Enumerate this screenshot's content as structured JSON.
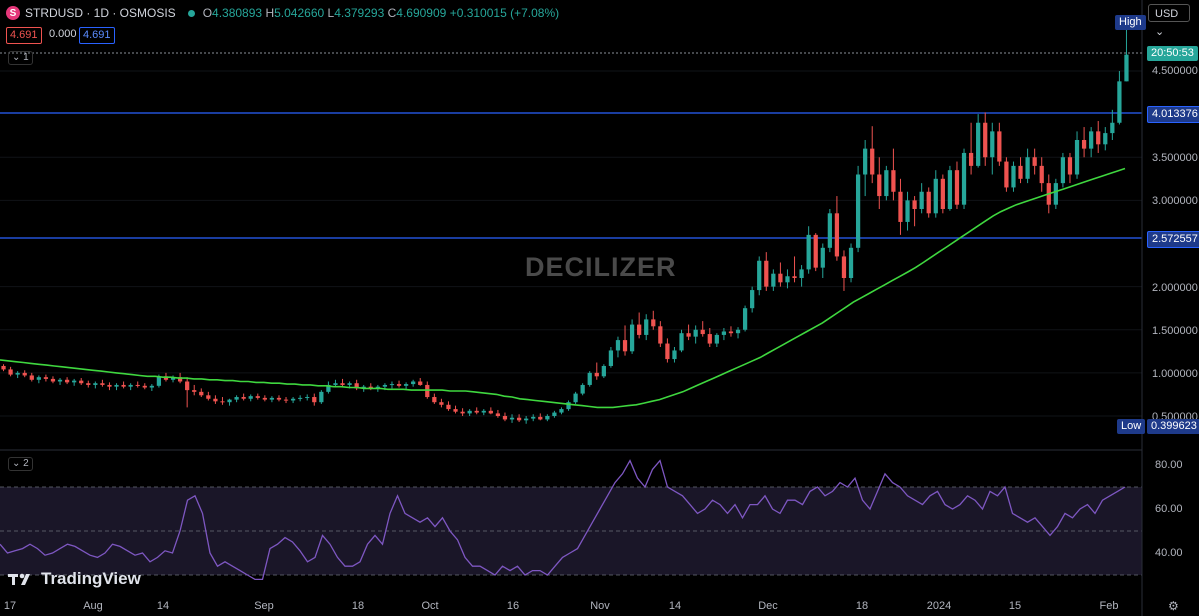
{
  "header": {
    "symbol_icon": "S",
    "title": "STRDUSD · 1D · OSMOSIS",
    "o_label": "O",
    "o": "4.380893",
    "h_label": "H",
    "h": "5.042660",
    "l_label": "L",
    "l": "4.379293",
    "c_label": "C",
    "c": "4.690909",
    "change": "+0.310015 (+7.08%)",
    "bid": "4.691",
    "spread": "0.000",
    "ask": "4.691",
    "pane1_label": "1",
    "pane2_label": "2",
    "currency": "USD"
  },
  "watermark": "DECILIZER",
  "branding": "TradingView",
  "price_axis": {
    "ticks": [
      "4.500000",
      "3.500000",
      "3.000000",
      "2.000000",
      "1.500000",
      "1.000000",
      "0.500000"
    ],
    "line_upper": "4.013376",
    "line_lower": "2.572557",
    "countdown": "20:50:53",
    "high_label": "High",
    "low_label": "Low",
    "low_value": "0.399623"
  },
  "rsi_axis": {
    "ticks": [
      "80.00",
      "60.00",
      "40.00"
    ]
  },
  "time_axis": [
    {
      "label": "17",
      "x": 10
    },
    {
      "label": "Aug",
      "x": 93
    },
    {
      "label": "14",
      "x": 163
    },
    {
      "label": "Sep",
      "x": 264
    },
    {
      "label": "18",
      "x": 358
    },
    {
      "label": "Oct",
      "x": 430
    },
    {
      "label": "16",
      "x": 513
    },
    {
      "label": "Nov",
      "x": 600
    },
    {
      "label": "14",
      "x": 675
    },
    {
      "label": "Dec",
      "x": 768
    },
    {
      "label": "18",
      "x": 862
    },
    {
      "label": "2024",
      "x": 939
    },
    {
      "label": "15",
      "x": 1015
    },
    {
      "label": "Feb",
      "x": 1109
    }
  ],
  "colors": {
    "up": "#26a69a",
    "down": "#ef5350",
    "ma": "#3fd73f",
    "rsi": "#7e57c2",
    "hline": "#2962ff",
    "band": "#1a1628"
  },
  "chart_data": [
    {
      "type": "candlestick",
      "title": "STRDUSD · 1D · OSMOSIS",
      "ylim": [
        0.35,
        5.1
      ],
      "candles": [
        [
          1.08,
          1.1,
          1.02,
          1.04
        ],
        [
          1.04,
          1.07,
          0.96,
          0.98
        ],
        [
          0.98,
          1.02,
          0.94,
          1.0
        ],
        [
          1.0,
          1.03,
          0.95,
          0.97
        ],
        [
          0.97,
          1.0,
          0.9,
          0.92
        ],
        [
          0.92,
          0.97,
          0.88,
          0.95
        ],
        [
          0.95,
          0.98,
          0.9,
          0.93
        ],
        [
          0.93,
          0.96,
          0.88,
          0.9
        ],
        [
          0.9,
          0.94,
          0.86,
          0.92
        ],
        [
          0.92,
          0.95,
          0.87,
          0.89
        ],
        [
          0.89,
          0.93,
          0.85,
          0.91
        ],
        [
          0.91,
          0.94,
          0.86,
          0.88
        ],
        [
          0.88,
          0.91,
          0.83,
          0.86
        ],
        [
          0.86,
          0.9,
          0.82,
          0.88
        ],
        [
          0.88,
          0.92,
          0.84,
          0.86
        ],
        [
          0.86,
          0.89,
          0.8,
          0.84
        ],
        [
          0.84,
          0.88,
          0.8,
          0.86
        ],
        [
          0.86,
          0.9,
          0.82,
          0.84
        ],
        [
          0.84,
          0.88,
          0.8,
          0.86
        ],
        [
          0.86,
          0.9,
          0.83,
          0.85
        ],
        [
          0.85,
          0.88,
          0.81,
          0.83
        ],
        [
          0.83,
          0.87,
          0.79,
          0.85
        ],
        [
          0.85,
          0.98,
          0.83,
          0.96
        ],
        [
          0.96,
          1.0,
          0.9,
          0.92
        ],
        [
          0.92,
          0.97,
          0.89,
          0.95
        ],
        [
          0.95,
          1.0,
          0.88,
          0.9
        ],
        [
          0.9,
          0.95,
          0.6,
          0.8
        ],
        [
          0.8,
          0.86,
          0.74,
          0.78
        ],
        [
          0.78,
          0.82,
          0.72,
          0.74
        ],
        [
          0.74,
          0.78,
          0.68,
          0.7
        ],
        [
          0.7,
          0.74,
          0.64,
          0.67
        ],
        [
          0.67,
          0.72,
          0.63,
          0.66
        ],
        [
          0.66,
          0.7,
          0.62,
          0.69
        ],
        [
          0.69,
          0.74,
          0.66,
          0.72
        ],
        [
          0.72,
          0.76,
          0.68,
          0.7
        ],
        [
          0.7,
          0.75,
          0.67,
          0.73
        ],
        [
          0.73,
          0.76,
          0.69,
          0.71
        ],
        [
          0.71,
          0.74,
          0.67,
          0.69
        ],
        [
          0.69,
          0.73,
          0.66,
          0.71
        ],
        [
          0.71,
          0.74,
          0.67,
          0.69
        ],
        [
          0.69,
          0.72,
          0.65,
          0.68
        ],
        [
          0.68,
          0.72,
          0.65,
          0.7
        ],
        [
          0.7,
          0.74,
          0.67,
          0.71
        ],
        [
          0.71,
          0.75,
          0.68,
          0.72
        ],
        [
          0.72,
          0.76,
          0.62,
          0.66
        ],
        [
          0.66,
          0.8,
          0.64,
          0.78
        ],
        [
          0.78,
          0.9,
          0.76,
          0.86
        ],
        [
          0.86,
          0.92,
          0.83,
          0.88
        ],
        [
          0.88,
          0.93,
          0.84,
          0.86
        ],
        [
          0.86,
          0.9,
          0.82,
          0.88
        ],
        [
          0.88,
          0.92,
          0.8,
          0.82
        ],
        [
          0.82,
          0.86,
          0.78,
          0.84
        ],
        [
          0.84,
          0.88,
          0.8,
          0.82
        ],
        [
          0.82,
          0.86,
          0.78,
          0.84
        ],
        [
          0.84,
          0.88,
          0.8,
          0.86
        ],
        [
          0.86,
          0.9,
          0.82,
          0.87
        ],
        [
          0.87,
          0.91,
          0.83,
          0.85
        ],
        [
          0.85,
          0.89,
          0.81,
          0.87
        ],
        [
          0.87,
          0.92,
          0.84,
          0.9
        ],
        [
          0.9,
          0.94,
          0.85,
          0.86
        ],
        [
          0.86,
          0.9,
          0.7,
          0.72
        ],
        [
          0.72,
          0.76,
          0.64,
          0.66
        ],
        [
          0.66,
          0.7,
          0.6,
          0.63
        ],
        [
          0.63,
          0.67,
          0.56,
          0.58
        ],
        [
          0.58,
          0.62,
          0.53,
          0.55
        ],
        [
          0.55,
          0.59,
          0.5,
          0.53
        ],
        [
          0.53,
          0.58,
          0.5,
          0.56
        ],
        [
          0.56,
          0.6,
          0.52,
          0.54
        ],
        [
          0.54,
          0.58,
          0.51,
          0.56
        ],
        [
          0.56,
          0.6,
          0.52,
          0.53
        ],
        [
          0.53,
          0.57,
          0.48,
          0.5
        ],
        [
          0.5,
          0.54,
          0.44,
          0.46
        ],
        [
          0.46,
          0.52,
          0.42,
          0.48
        ],
        [
          0.48,
          0.52,
          0.43,
          0.45
        ],
        [
          0.45,
          0.5,
          0.41,
          0.47
        ],
        [
          0.47,
          0.52,
          0.44,
          0.49
        ],
        [
          0.49,
          0.53,
          0.45,
          0.46
        ],
        [
          0.46,
          0.52,
          0.44,
          0.5
        ],
        [
          0.5,
          0.56,
          0.48,
          0.54
        ],
        [
          0.54,
          0.6,
          0.52,
          0.58
        ],
        [
          0.58,
          0.68,
          0.56,
          0.66
        ],
        [
          0.66,
          0.78,
          0.64,
          0.76
        ],
        [
          0.76,
          0.88,
          0.74,
          0.86
        ],
        [
          0.86,
          1.02,
          0.84,
          1.0
        ],
        [
          1.0,
          1.12,
          0.92,
          0.96
        ],
        [
          0.96,
          1.1,
          0.94,
          1.08
        ],
        [
          1.08,
          1.3,
          1.06,
          1.26
        ],
        [
          1.26,
          1.42,
          1.18,
          1.38
        ],
        [
          1.38,
          1.55,
          1.2,
          1.25
        ],
        [
          1.25,
          1.62,
          1.22,
          1.56
        ],
        [
          1.56,
          1.7,
          1.4,
          1.44
        ],
        [
          1.44,
          1.68,
          1.38,
          1.62
        ],
        [
          1.62,
          1.72,
          1.5,
          1.54
        ],
        [
          1.54,
          1.6,
          1.3,
          1.34
        ],
        [
          1.34,
          1.4,
          1.12,
          1.16
        ],
        [
          1.16,
          1.3,
          1.12,
          1.26
        ],
        [
          1.26,
          1.5,
          1.24,
          1.46
        ],
        [
          1.46,
          1.56,
          1.38,
          1.42
        ],
        [
          1.42,
          1.55,
          1.34,
          1.5
        ],
        [
          1.5,
          1.6,
          1.42,
          1.45
        ],
        [
          1.45,
          1.52,
          1.3,
          1.34
        ],
        [
          1.34,
          1.46,
          1.3,
          1.44
        ],
        [
          1.44,
          1.52,
          1.38,
          1.48
        ],
        [
          1.48,
          1.54,
          1.42,
          1.46
        ],
        [
          1.46,
          1.53,
          1.4,
          1.5
        ],
        [
          1.5,
          1.78,
          1.48,
          1.75
        ],
        [
          1.75,
          2.0,
          1.7,
          1.96
        ],
        [
          1.96,
          2.35,
          1.9,
          2.3
        ],
        [
          2.3,
          2.4,
          1.95,
          2.0
        ],
        [
          2.0,
          2.2,
          1.95,
          2.15
        ],
        [
          2.15,
          2.28,
          2.0,
          2.05
        ],
        [
          2.05,
          2.2,
          1.98,
          2.12
        ],
        [
          2.12,
          2.35,
          2.05,
          2.1
        ],
        [
          2.1,
          2.25,
          2.0,
          2.2
        ],
        [
          2.2,
          2.7,
          2.15,
          2.6
        ],
        [
          2.6,
          2.62,
          2.18,
          2.22
        ],
        [
          2.22,
          2.5,
          2.1,
          2.45
        ],
        [
          2.45,
          2.9,
          2.4,
          2.85
        ],
        [
          2.85,
          3.05,
          2.3,
          2.35
        ],
        [
          2.35,
          2.42,
          1.95,
          2.1
        ],
        [
          2.1,
          2.5,
          2.05,
          2.45
        ],
        [
          2.45,
          3.4,
          2.4,
          3.3
        ],
        [
          3.3,
          3.7,
          3.05,
          3.6
        ],
        [
          3.6,
          3.86,
          3.2,
          3.3
        ],
        [
          3.3,
          3.5,
          2.9,
          3.05
        ],
        [
          3.05,
          3.4,
          3.0,
          3.35
        ],
        [
          3.35,
          3.6,
          3.0,
          3.1
        ],
        [
          3.1,
          3.25,
          2.6,
          2.75
        ],
        [
          2.75,
          3.1,
          2.65,
          3.0
        ],
        [
          3.0,
          3.05,
          2.7,
          2.9
        ],
        [
          2.9,
          3.2,
          2.85,
          3.1
        ],
        [
          3.1,
          3.15,
          2.8,
          2.85
        ],
        [
          2.85,
          3.35,
          2.8,
          3.25
        ],
        [
          3.25,
          3.3,
          2.85,
          2.9
        ],
        [
          2.9,
          3.4,
          2.88,
          3.35
        ],
        [
          3.35,
          3.45,
          2.9,
          2.95
        ],
        [
          2.95,
          3.6,
          2.9,
          3.55
        ],
        [
          3.55,
          3.9,
          3.3,
          3.4
        ],
        [
          3.4,
          4.0,
          3.38,
          3.9
        ],
        [
          3.9,
          4.02,
          3.4,
          3.5
        ],
        [
          3.5,
          3.9,
          3.3,
          3.8
        ],
        [
          3.8,
          3.9,
          3.4,
          3.45
        ],
        [
          3.45,
          3.5,
          3.1,
          3.15
        ],
        [
          3.15,
          3.45,
          3.1,
          3.4
        ],
        [
          3.4,
          3.5,
          3.2,
          3.25
        ],
        [
          3.25,
          3.6,
          3.2,
          3.5
        ],
        [
          3.5,
          3.6,
          3.3,
          3.4
        ],
        [
          3.4,
          3.5,
          3.1,
          3.2
        ],
        [
          3.2,
          3.3,
          2.85,
          2.95
        ],
        [
          2.95,
          3.25,
          2.9,
          3.2
        ],
        [
          3.2,
          3.55,
          3.15,
          3.5
        ],
        [
          3.5,
          3.55,
          3.2,
          3.3
        ],
        [
          3.3,
          3.8,
          3.25,
          3.7
        ],
        [
          3.7,
          3.85,
          3.5,
          3.6
        ],
        [
          3.6,
          3.85,
          3.5,
          3.8
        ],
        [
          3.8,
          3.92,
          3.55,
          3.65
        ],
        [
          3.65,
          3.85,
          3.58,
          3.78
        ],
        [
          3.78,
          4.05,
          3.7,
          3.9
        ],
        [
          3.9,
          4.5,
          3.88,
          4.38
        ],
        [
          4.38,
          5.04,
          4.38,
          4.69
        ]
      ],
      "ma_values": [
        1.15,
        1.14,
        1.13,
        1.12,
        1.11,
        1.1,
        1.09,
        1.08,
        1.07,
        1.06,
        1.05,
        1.04,
        1.03,
        1.02,
        1.01,
        1.0,
        0.99,
        0.98,
        0.97,
        0.96,
        0.96,
        0.95,
        0.95,
        0.94,
        0.94,
        0.93,
        0.93,
        0.92,
        0.92,
        0.91,
        0.91,
        0.9,
        0.9,
        0.89,
        0.89,
        0.88,
        0.88,
        0.87,
        0.87,
        0.86,
        0.86,
        0.85,
        0.85,
        0.84,
        0.84,
        0.83,
        0.83,
        0.82,
        0.82,
        0.82,
        0.81,
        0.81,
        0.81,
        0.8,
        0.8,
        0.8,
        0.8,
        0.8,
        0.79,
        0.79,
        0.79,
        0.78,
        0.77,
        0.76,
        0.75,
        0.73,
        0.72,
        0.7,
        0.69,
        0.68,
        0.67,
        0.66,
        0.65,
        0.64,
        0.63,
        0.62,
        0.61,
        0.6,
        0.6,
        0.6,
        0.61,
        0.62,
        0.63,
        0.65,
        0.67,
        0.69,
        0.72,
        0.75,
        0.78,
        0.82,
        0.86,
        0.9,
        0.94,
        0.98,
        1.02,
        1.06,
        1.1,
        1.14,
        1.18,
        1.23,
        1.28,
        1.33,
        1.38,
        1.43,
        1.48,
        1.53,
        1.58,
        1.64,
        1.7,
        1.76,
        1.82,
        1.87,
        1.92,
        1.97,
        2.02,
        2.07,
        2.12,
        2.17,
        2.22,
        2.28,
        2.34,
        2.4,
        2.46,
        2.52,
        2.58,
        2.64,
        2.7,
        2.76,
        2.82,
        2.87,
        2.91,
        2.95,
        2.98,
        3.01,
        3.04,
        3.07,
        3.1,
        3.13,
        3.16,
        3.19,
        3.22,
        3.25,
        3.28,
        3.31,
        3.34,
        3.37
      ]
    },
    {
      "type": "line",
      "title": "RSI",
      "ylim": [
        25,
        85
      ],
      "yticks": [
        80,
        60,
        40
      ],
      "bands": [
        70,
        50,
        30
      ],
      "values": [
        44,
        40,
        41,
        42,
        44,
        42,
        39,
        40,
        42,
        44,
        43,
        41,
        39,
        38,
        40,
        44,
        43,
        41,
        39,
        40,
        36,
        38,
        41,
        40,
        50,
        64,
        66,
        58,
        40,
        34,
        36,
        34,
        32,
        30,
        28,
        28,
        42,
        44,
        47,
        45,
        41,
        36,
        38,
        48,
        44,
        38,
        34,
        34,
        36,
        44,
        48,
        44,
        58,
        66,
        58,
        56,
        54,
        56,
        52,
        56,
        50,
        46,
        38,
        34,
        34,
        32,
        30,
        34,
        32,
        34,
        30,
        32,
        32,
        30,
        34,
        38,
        40,
        42,
        48,
        54,
        60,
        66,
        72,
        76,
        82,
        74,
        70,
        78,
        82,
        70,
        68,
        66,
        62,
        58,
        60,
        64,
        62,
        58,
        62,
        56,
        62,
        62,
        66,
        60,
        58,
        64,
        64,
        62,
        68,
        70,
        66,
        68,
        72,
        70,
        74,
        64,
        60,
        68,
        76,
        72,
        70,
        66,
        64,
        62,
        66,
        68,
        62,
        60,
        62,
        66,
        64,
        60,
        68,
        66,
        70,
        58,
        56,
        54,
        56,
        52,
        48,
        52,
        58,
        56,
        60,
        62,
        58,
        64,
        66,
        68,
        70
      ]
    }
  ]
}
